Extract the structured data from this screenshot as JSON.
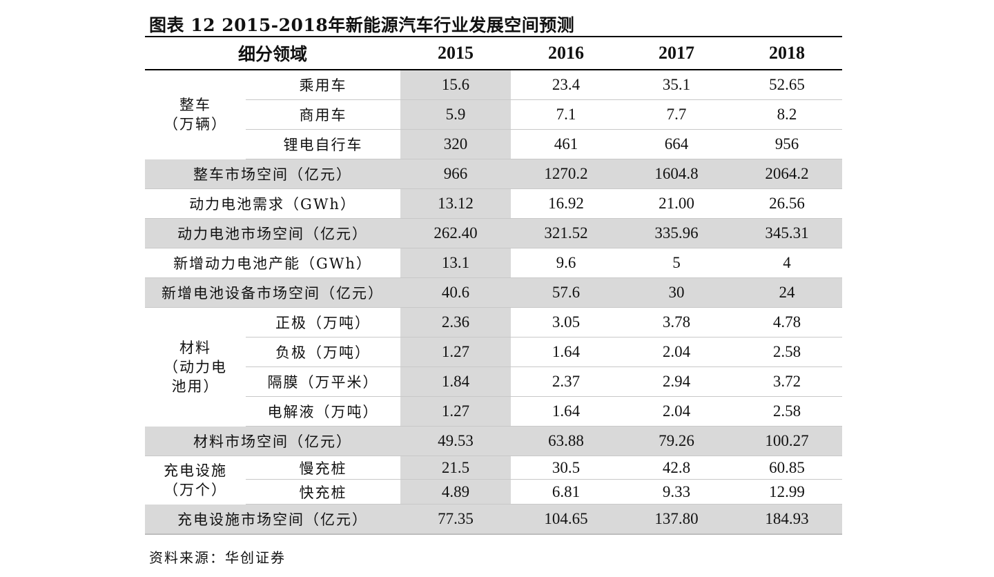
{
  "title": "图表 12  2015-2018年新能源汽车行业发展空间预测",
  "header": {
    "label": "细分领域",
    "years": [
      "2015",
      "2016",
      "2017",
      "2018"
    ]
  },
  "groups": {
    "vehicle": "整车\n（万辆）",
    "materials": "材料\n（动力电\n池用）",
    "charging": "充电设施\n（万个）"
  },
  "rows": [
    {
      "label": "乘用车",
      "values": [
        "15.6",
        "23.4",
        "35.1",
        "52.65"
      ]
    },
    {
      "label": "商用车",
      "values": [
        "5.9",
        "7.1",
        "7.7",
        "8.2"
      ]
    },
    {
      "label": "锂电自行车",
      "values": [
        "320",
        "461",
        "664",
        "956"
      ]
    },
    {
      "label": "整车市场空间（亿元）",
      "values": [
        "966",
        "1270.2",
        "1604.8",
        "2064.2"
      ]
    },
    {
      "label": "动力电池需求（GWh）",
      "values": [
        "13.12",
        "16.92",
        "21.00",
        "26.56"
      ]
    },
    {
      "label": "动力电池市场空间（亿元）",
      "values": [
        "262.40",
        "321.52",
        "335.96",
        "345.31"
      ]
    },
    {
      "label": "新增动力电池产能（GWh）",
      "values": [
        "13.1",
        "9.6",
        "5",
        "4"
      ]
    },
    {
      "label": "新增电池设备市场空间（亿元）",
      "values": [
        "40.6",
        "57.6",
        "30",
        "24"
      ]
    },
    {
      "label": "正极（万吨）",
      "values": [
        "2.36",
        "3.05",
        "3.78",
        "4.78"
      ]
    },
    {
      "label": "负极（万吨）",
      "values": [
        "1.27",
        "1.64",
        "2.04",
        "2.58"
      ]
    },
    {
      "label": "隔膜（万平米）",
      "values": [
        "1.84",
        "2.37",
        "2.94",
        "3.72"
      ]
    },
    {
      "label": "电解液（万吨）",
      "values": [
        "1.27",
        "1.64",
        "2.04",
        "2.58"
      ]
    },
    {
      "label": "材料市场空间（亿元）",
      "values": [
        "49.53",
        "63.88",
        "79.26",
        "100.27"
      ]
    },
    {
      "label": "慢充桩",
      "values": [
        "21.5",
        "30.5",
        "42.8",
        "60.85"
      ]
    },
    {
      "label": "快充桩",
      "values": [
        "4.89",
        "6.81",
        "9.33",
        "12.99"
      ]
    },
    {
      "label": "充电设施市场空间（亿元）",
      "values": [
        "77.35",
        "104.65",
        "137.80",
        "184.93"
      ]
    }
  ],
  "source": "资料来源：华创证券"
}
